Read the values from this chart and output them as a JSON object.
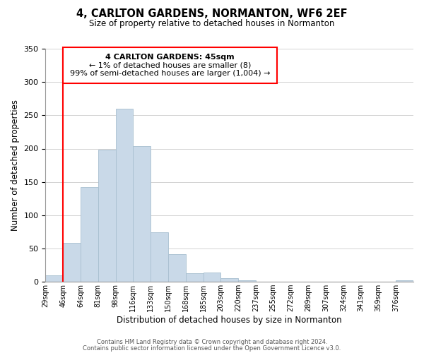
{
  "title": "4, CARLTON GARDENS, NORMANTON, WF6 2EF",
  "subtitle": "Size of property relative to detached houses in Normanton",
  "xlabel": "Distribution of detached houses by size in Normanton",
  "ylabel": "Number of detached properties",
  "footer_line1": "Contains HM Land Registry data © Crown copyright and database right 2024.",
  "footer_line2": "Contains public sector information licensed under the Open Government Licence v3.0.",
  "bin_labels": [
    "29sqm",
    "46sqm",
    "64sqm",
    "81sqm",
    "98sqm",
    "116sqm",
    "133sqm",
    "150sqm",
    "168sqm",
    "185sqm",
    "203sqm",
    "220sqm",
    "237sqm",
    "255sqm",
    "272sqm",
    "289sqm",
    "307sqm",
    "324sqm",
    "341sqm",
    "359sqm",
    "376sqm"
  ],
  "bar_values": [
    10,
    58,
    142,
    198,
    260,
    204,
    74,
    41,
    13,
    14,
    6,
    2,
    0,
    0,
    0,
    0,
    0,
    0,
    0,
    0,
    2
  ],
  "bar_color": "#c9d9e8",
  "bar_edge_color": "#a8bfd0",
  "ylim": [
    0,
    350
  ],
  "yticks": [
    0,
    50,
    100,
    150,
    200,
    250,
    300,
    350
  ],
  "property_line_x": 1,
  "annotation_text_line1": "4 CARLTON GARDENS: 45sqm",
  "annotation_text_line2": "← 1% of detached houses are smaller (8)",
  "annotation_text_line3": "99% of semi-detached houses are larger (1,004) →",
  "annotation_box_color": "#ff0000",
  "property_line_color": "#ff0000",
  "bg_color": "#ffffff",
  "grid_color": "#cccccc"
}
